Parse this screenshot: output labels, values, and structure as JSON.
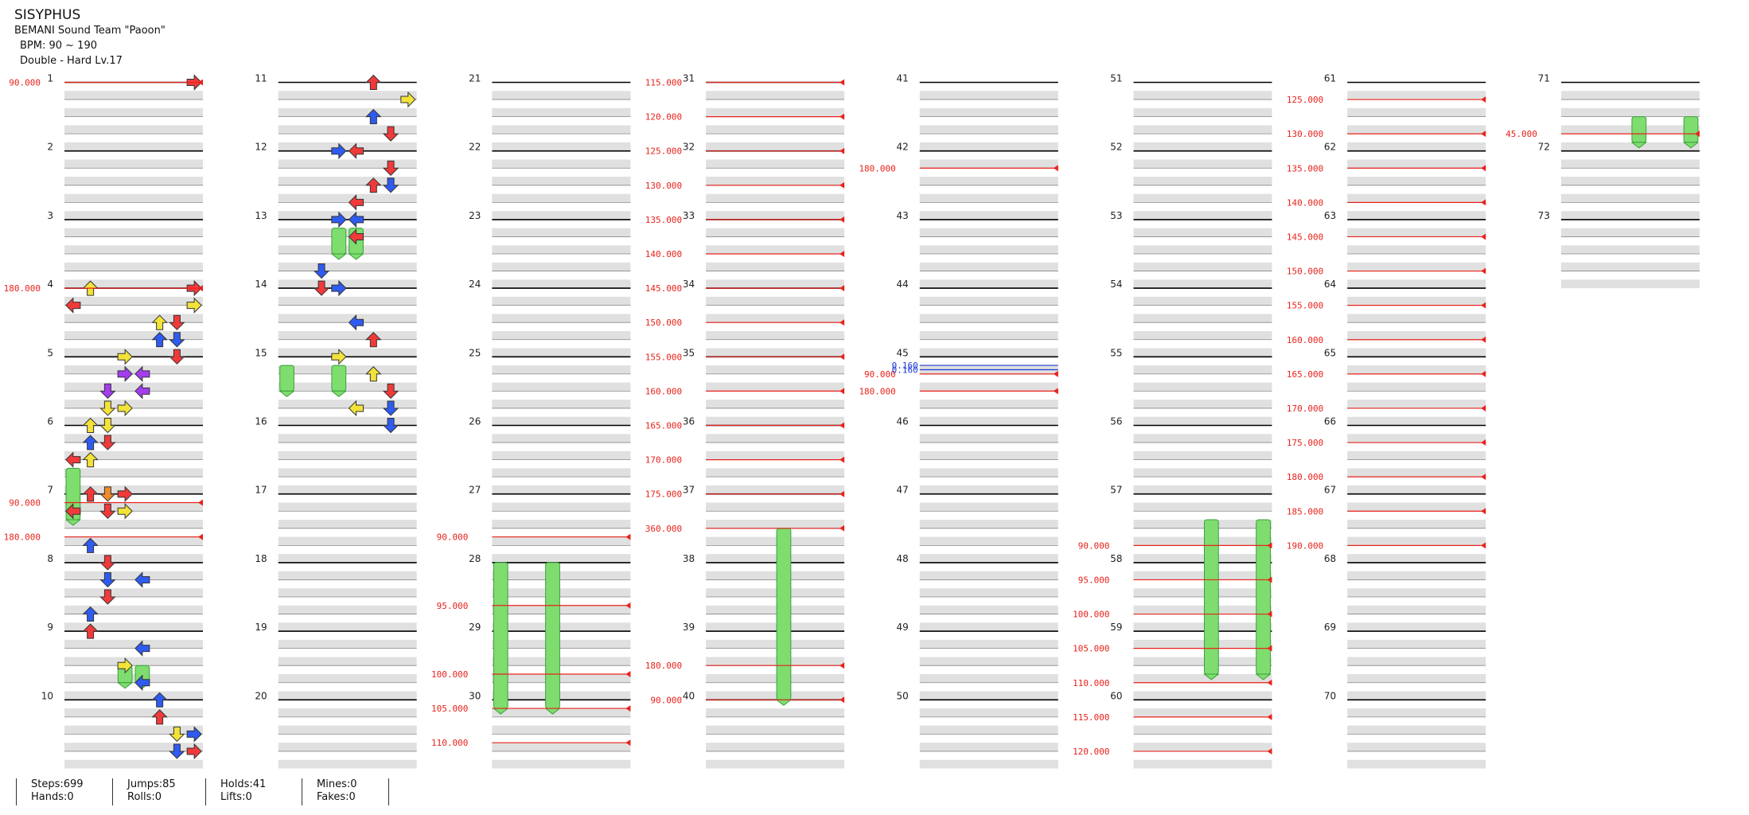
{
  "song": {
    "title": "SISYPHUS",
    "artist": "BEMANI Sound Team \"Paoon\"",
    "bpm": "BPM: 90 ~ 190",
    "difficulty": "Double - Hard Lv.17"
  },
  "colors": {
    "bpm_marker": "#e8231c",
    "stop_marker": "#1d3bd6",
    "arrow_red": "#f03a3a",
    "arrow_blue": "#2f5bf0",
    "arrow_yellow": "#f2e23a",
    "arrow_purple": "#a43cf0",
    "arrow_orange": "#f08a2a",
    "hold_green": "#7fdc6f",
    "lane_gray": "#e0e0e0"
  },
  "measures": {
    "count": 73,
    "labels": [
      "1",
      "2",
      "3",
      "4",
      "5",
      "6",
      "7",
      "8",
      "9",
      "10",
      "11",
      "12",
      "13",
      "14",
      "15",
      "16",
      "17",
      "18",
      "19",
      "20",
      "21",
      "22",
      "23",
      "24",
      "25",
      "26",
      "27",
      "28",
      "29",
      "30",
      "31",
      "32",
      "33",
      "34",
      "35",
      "36",
      "37",
      "38",
      "39",
      "40",
      "41",
      "42",
      "43",
      "44",
      "45",
      "46",
      "47",
      "48",
      "49",
      "50",
      "51",
      "52",
      "53",
      "54",
      "55",
      "56",
      "57",
      "58",
      "59",
      "60",
      "61",
      "62",
      "63",
      "64",
      "65",
      "66",
      "67",
      "68",
      "69",
      "70",
      "71",
      "72",
      "73"
    ]
  },
  "bpm_changes": [
    {
      "beat": 0,
      "label": "90.000"
    },
    {
      "beat": 12,
      "label": "180.000"
    },
    {
      "beat": 24.5,
      "label": "90.000"
    },
    {
      "beat": 26.5,
      "label": "180.000"
    },
    {
      "beat": 106.5,
      "label": "90.000"
    },
    {
      "beat": 110.5,
      "label": "95.000"
    },
    {
      "beat": 114.5,
      "label": "100.000"
    },
    {
      "beat": 116.5,
      "label": "105.000"
    },
    {
      "beat": 118.5,
      "label": "110.000"
    },
    {
      "beat": 120,
      "label": "115.000"
    },
    {
      "beat": 122,
      "label": "120.000"
    },
    {
      "beat": 124,
      "label": "125.000"
    },
    {
      "beat": 126,
      "label": "130.000"
    },
    {
      "beat": 128,
      "label": "135.000"
    },
    {
      "beat": 130,
      "label": "140.000"
    },
    {
      "beat": 132,
      "label": "145.000"
    },
    {
      "beat": 134,
      "label": "150.000"
    },
    {
      "beat": 136,
      "label": "155.000"
    },
    {
      "beat": 138,
      "label": "160.000"
    },
    {
      "beat": 140,
      "label": "165.000"
    },
    {
      "beat": 142,
      "label": "170.000"
    },
    {
      "beat": 144,
      "label": "175.000"
    },
    {
      "beat": 146,
      "label": "360.000"
    },
    {
      "beat": 154,
      "label": "180.000"
    },
    {
      "beat": 156,
      "label": "90.000"
    },
    {
      "beat": 165,
      "label": "180.000"
    },
    {
      "beat": 177,
      "label": "90.000"
    },
    {
      "beat": 178,
      "label": "180.000"
    },
    {
      "beat": 227,
      "label": "90.000"
    },
    {
      "beat": 229,
      "label": "95.000"
    },
    {
      "beat": 231,
      "label": "100.000"
    },
    {
      "beat": 233,
      "label": "105.000"
    },
    {
      "beat": 235,
      "label": "110.000"
    },
    {
      "beat": 237,
      "label": "115.000"
    },
    {
      "beat": 239,
      "label": "120.000"
    },
    {
      "beat": 241,
      "label": "125.000"
    },
    {
      "beat": 243,
      "label": "130.000"
    },
    {
      "beat": 245,
      "label": "135.000"
    },
    {
      "beat": 247,
      "label": "140.000"
    },
    {
      "beat": 249,
      "label": "145.000"
    },
    {
      "beat": 251,
      "label": "150.000"
    },
    {
      "beat": 253,
      "label": "155.000"
    },
    {
      "beat": 255,
      "label": "160.000"
    },
    {
      "beat": 257,
      "label": "165.000"
    },
    {
      "beat": 259,
      "label": "170.000"
    },
    {
      "beat": 261,
      "label": "175.000"
    },
    {
      "beat": 263,
      "label": "180.000"
    },
    {
      "beat": 265,
      "label": "185.000"
    },
    {
      "beat": 267,
      "label": "190.000"
    },
    {
      "beat": 283,
      "label": "45.000"
    }
  ],
  "stops": [
    {
      "beat": 176.5,
      "label": "0.160"
    },
    {
      "beat": 176.75,
      "label": "0.160"
    }
  ],
  "notes": [
    {
      "beat": 0,
      "col": 7,
      "c": "r"
    },
    {
      "beat": 12,
      "col": 1,
      "c": "y"
    },
    {
      "beat": 12,
      "col": 7,
      "c": "r"
    },
    {
      "beat": 13,
      "col": 0,
      "c": "r"
    },
    {
      "beat": 13,
      "col": 7,
      "c": "y"
    },
    {
      "beat": 14,
      "col": 5,
      "c": "y"
    },
    {
      "beat": 14,
      "col": 6,
      "c": "r"
    },
    {
      "beat": 15,
      "col": 5,
      "c": "b"
    },
    {
      "beat": 15,
      "col": 6,
      "c": "b"
    },
    {
      "beat": 16,
      "col": 3,
      "c": "y"
    },
    {
      "beat": 16,
      "col": 6,
      "c": "r"
    },
    {
      "beat": 17,
      "col": 3,
      "c": "p"
    },
    {
      "beat": 17,
      "col": 4,
      "c": "p"
    },
    {
      "beat": 18,
      "col": 2,
      "c": "p"
    },
    {
      "beat": 18,
      "col": 4,
      "c": "p"
    },
    {
      "beat": 19,
      "col": 2,
      "c": "y"
    },
    {
      "beat": 19,
      "col": 3,
      "c": "y"
    },
    {
      "beat": 20,
      "col": 1,
      "c": "y"
    },
    {
      "beat": 20,
      "col": 2,
      "c": "y"
    },
    {
      "beat": 21,
      "col": 1,
      "c": "b"
    },
    {
      "beat": 21,
      "col": 2,
      "c": "r"
    },
    {
      "beat": 22,
      "col": 0,
      "c": "r"
    },
    {
      "beat": 22,
      "col": 1,
      "c": "y"
    },
    {
      "beat": 24,
      "col": 1,
      "c": "r"
    },
    {
      "beat": 24,
      "col": 2,
      "c": "o"
    },
    {
      "beat": 24,
      "col": 3,
      "c": "r"
    },
    {
      "beat": 25,
      "col": 0,
      "c": "r"
    },
    {
      "beat": 25,
      "col": 2,
      "c": "r"
    },
    {
      "beat": 25,
      "col": 3,
      "c": "y"
    },
    {
      "beat": 27,
      "col": 1,
      "c": "b"
    },
    {
      "beat": 28,
      "col": 2,
      "c": "r"
    },
    {
      "beat": 29,
      "col": 2,
      "c": "b"
    },
    {
      "beat": 29,
      "col": 4,
      "c": "b"
    },
    {
      "beat": 30,
      "col": 2,
      "c": "r"
    },
    {
      "beat": 31,
      "col": 1,
      "c": "b"
    },
    {
      "beat": 32,
      "col": 1,
      "c": "r"
    },
    {
      "beat": 33,
      "col": 4,
      "c": "b"
    },
    {
      "beat": 34,
      "col": 3,
      "c": "y"
    },
    {
      "beat": 35,
      "col": 4,
      "c": "b"
    },
    {
      "beat": 36,
      "col": 5,
      "c": "b"
    },
    {
      "beat": 37,
      "col": 5,
      "c": "r"
    },
    {
      "beat": 38,
      "col": 6,
      "c": "y"
    },
    {
      "beat": 38,
      "col": 7,
      "c": "b"
    },
    {
      "beat": 39,
      "col": 6,
      "c": "b"
    },
    {
      "beat": 39,
      "col": 7,
      "c": "r"
    },
    {
      "beat": 40,
      "col": 5,
      "c": "r"
    },
    {
      "beat": 41,
      "col": 7,
      "c": "y"
    },
    {
      "beat": 42,
      "col": 5,
      "c": "b"
    },
    {
      "beat": 43,
      "col": 6,
      "c": "r"
    },
    {
      "beat": 44,
      "col": 3,
      "c": "b"
    },
    {
      "beat": 44,
      "col": 4,
      "c": "r"
    },
    {
      "beat": 45,
      "col": 6,
      "c": "r"
    },
    {
      "beat": 46,
      "col": 5,
      "c": "r"
    },
    {
      "beat": 46,
      "col": 6,
      "c": "b"
    },
    {
      "beat": 47,
      "col": 4,
      "c": "r"
    },
    {
      "beat": 48,
      "col": 3,
      "c": "b"
    },
    {
      "beat": 48,
      "col": 4,
      "c": "b"
    },
    {
      "beat": 49,
      "col": 4,
      "c": "r"
    },
    {
      "beat": 51,
      "col": 2,
      "c": "b"
    },
    {
      "beat": 52,
      "col": 2,
      "c": "r"
    },
    {
      "beat": 52,
      "col": 3,
      "c": "b"
    },
    {
      "beat": 54,
      "col": 4,
      "c": "b"
    },
    {
      "beat": 55,
      "col": 5,
      "c": "r"
    },
    {
      "beat": 56,
      "col": 3,
      "c": "y"
    },
    {
      "beat": 57,
      "col": 5,
      "c": "y"
    },
    {
      "beat": 58,
      "col": 6,
      "c": "r"
    },
    {
      "beat": 59,
      "col": 4,
      "c": "y"
    },
    {
      "beat": 59,
      "col": 6,
      "c": "b"
    },
    {
      "beat": 60,
      "col": 6,
      "c": "b"
    }
  ],
  "holds": [
    {
      "start": 22.5,
      "end": 25.5,
      "col": 0
    },
    {
      "start": 34,
      "end": 35,
      "col": 3
    },
    {
      "start": 34,
      "end": 35,
      "col": 4
    },
    {
      "start": 48.5,
      "end": 50,
      "col": 3
    },
    {
      "start": 48.5,
      "end": 50,
      "col": 4
    },
    {
      "start": 56.5,
      "end": 58,
      "col": 0
    },
    {
      "start": 56.5,
      "end": 58,
      "col": 3
    },
    {
      "start": 108,
      "end": 116.5,
      "col": 0
    },
    {
      "start": 108,
      "end": 116.5,
      "col": 3
    },
    {
      "start": 146,
      "end": 156,
      "col": 4
    },
    {
      "start": 225.5,
      "end": 234.5,
      "col": 4
    },
    {
      "start": 225.5,
      "end": 234.5,
      "col": 7
    },
    {
      "start": 282,
      "end": 283.5,
      "col": 4
    },
    {
      "start": 282,
      "end": 283.5,
      "col": 7
    }
  ],
  "stats": {
    "steps": "Steps:699",
    "hands": "Hands:0",
    "jumps": "Jumps:85",
    "rolls": "Rolls:0",
    "holds": "Holds:41",
    "lifts": "Lifts:0",
    "mines": "Mines:0",
    "fakes": "Fakes:0"
  }
}
